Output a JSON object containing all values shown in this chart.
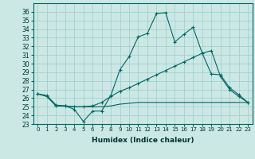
{
  "xlabel": "Humidex (Indice chaleur)",
  "bg_color": "#cce8e4",
  "grid_color": "#99cccc",
  "line_color": "#006666",
  "xlim": [
    -0.5,
    23.5
  ],
  "ylim": [
    23,
    37
  ],
  "xticks": [
    0,
    1,
    2,
    3,
    4,
    5,
    6,
    7,
    8,
    9,
    10,
    11,
    12,
    13,
    14,
    15,
    16,
    17,
    18,
    19,
    20,
    21,
    22,
    23
  ],
  "yticks": [
    23,
    24,
    25,
    26,
    27,
    28,
    29,
    30,
    31,
    32,
    33,
    34,
    35,
    36
  ],
  "line1_x": [
    0,
    1,
    2,
    3,
    4,
    5,
    6,
    7,
    8,
    9,
    10,
    11,
    12,
    13,
    14,
    15,
    16,
    17,
    18,
    19,
    20,
    21,
    22,
    23
  ],
  "line1_y": [
    26.5,
    26.3,
    25.2,
    25.1,
    24.7,
    23.3,
    24.5,
    24.5,
    26.3,
    29.3,
    30.8,
    33.1,
    33.5,
    35.8,
    35.9,
    32.5,
    33.4,
    34.2,
    31.2,
    28.8,
    28.7,
    27.2,
    26.4,
    25.5
  ],
  "line2_x": [
    0,
    1,
    2,
    3,
    4,
    5,
    6,
    7,
    8,
    9,
    10,
    11,
    12,
    13,
    14,
    15,
    16,
    17,
    18,
    19,
    20,
    21,
    22,
    23
  ],
  "line2_y": [
    26.5,
    26.2,
    25.1,
    25.1,
    25.0,
    25.0,
    25.1,
    25.5,
    26.2,
    26.8,
    27.2,
    27.7,
    28.2,
    28.7,
    29.2,
    29.7,
    30.2,
    30.7,
    31.2,
    31.5,
    28.5,
    27.0,
    26.2,
    25.5
  ],
  "line3_x": [
    0,
    1,
    2,
    3,
    4,
    5,
    6,
    7,
    8,
    9,
    10,
    11,
    12,
    13,
    14,
    15,
    16,
    17,
    18,
    19,
    20,
    21,
    22,
    23
  ],
  "line3_y": [
    26.5,
    26.2,
    25.1,
    25.1,
    25.0,
    25.0,
    25.0,
    25.0,
    25.1,
    25.3,
    25.4,
    25.5,
    25.5,
    25.5,
    25.5,
    25.5,
    25.5,
    25.5,
    25.5,
    25.5,
    25.5,
    25.5,
    25.5,
    25.5
  ]
}
